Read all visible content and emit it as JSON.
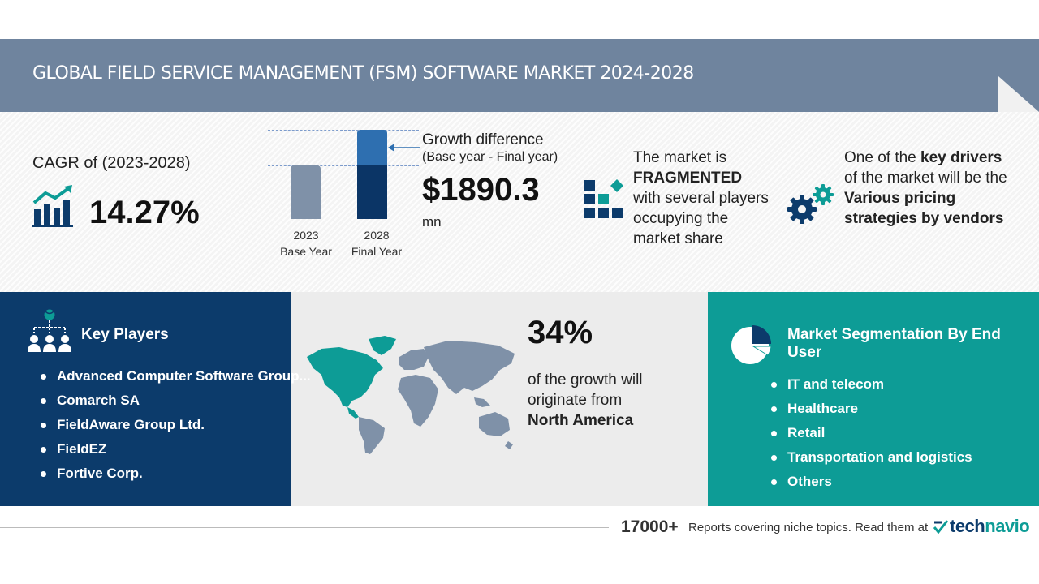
{
  "header": {
    "title": "GLOBAL FIELD SERVICE MANAGEMENT (FSM) SOFTWARE MARKET 2024-2028"
  },
  "cagr": {
    "label": "CAGR of (2023-2028)",
    "value": "14.27%"
  },
  "bars": {
    "base": {
      "year": "2023",
      "label": "Base Year"
    },
    "final": {
      "year": "2028",
      "label": "Final Year"
    }
  },
  "growth": {
    "title": "Growth difference",
    "subtitle": "(Base year - Final year)",
    "value": "$1890.3",
    "unit": "mn"
  },
  "fragmented": {
    "line1": "The market is",
    "emph": "FRAGMENTED",
    "line2": "with several players occupying the market share"
  },
  "drivers": {
    "pre": "One of the",
    "emph1": "key drivers",
    "mid": "of the market will be the",
    "emph2": "Various pricing strategies by vendors"
  },
  "key_players": {
    "title": "Key Players",
    "items": [
      "Advanced Computer Software Group...",
      "Comarch SA",
      "FieldAware Group Ltd.",
      "FieldEZ",
      "Fortive Corp."
    ]
  },
  "region": {
    "percent": "34%",
    "text": "of the growth will originate from",
    "name": "North America"
  },
  "segmentation": {
    "title": "Market Segmentation By End User",
    "items": [
      "IT and telecom",
      "Healthcare",
      "Retail",
      "Transportation and logistics",
      "Others"
    ]
  },
  "footer": {
    "count": "17000+",
    "text": "Reports covering niche topics. Read them at",
    "brand_prefix": "tech",
    "brand_suffix": "navio"
  },
  "colors": {
    "header": "#6f849e",
    "navy": "#0c3b6b",
    "teal": "#0d9c96",
    "bar_base": "#7f91a8",
    "bar_growth": "#2e6fb0"
  }
}
